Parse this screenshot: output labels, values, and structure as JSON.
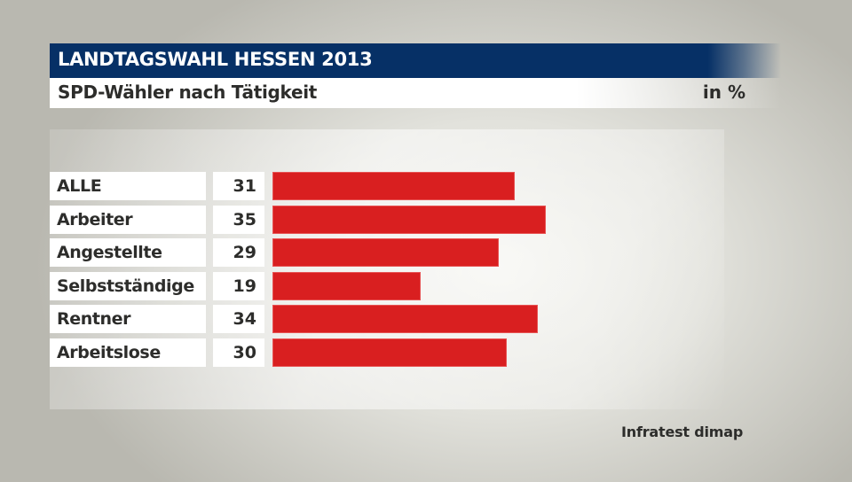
{
  "header": {
    "title": "LANDTAGSWAHL HESSEN 2013",
    "subtitle": "SPD-Wähler nach Tätigkeit",
    "unit": "in %"
  },
  "colors": {
    "header_bg": "#063066",
    "bar": "#d91f20",
    "text": "#2d2d2b"
  },
  "rows": [
    {
      "label": "ALLE",
      "value": "31"
    },
    {
      "label": "Arbeiter",
      "value": "35"
    },
    {
      "label": "Angestellte",
      "value": "29"
    },
    {
      "label": "Selbstständige",
      "value": "19"
    },
    {
      "label": "Rentner",
      "value": "34"
    },
    {
      "label": "Arbeitslose",
      "value": "30"
    }
  ],
  "source": "Infratest dimap",
  "chart_data": {
    "type": "bar",
    "orientation": "horizontal",
    "title": "LANDTAGSWAHL HESSEN 2013",
    "subtitle": "SPD-Wähler nach Tätigkeit",
    "unit": "in %",
    "categories": [
      "ALLE",
      "Arbeiter",
      "Angestellte",
      "Selbstständige",
      "Rentner",
      "Arbeitslose"
    ],
    "values": [
      31,
      35,
      29,
      19,
      34,
      30
    ],
    "series": [
      {
        "name": "SPD-Wähler",
        "values": [
          31,
          35,
          29,
          19,
          34,
          30
        ],
        "color": "#d91f20"
      }
    ],
    "xlabel": "",
    "ylabel": "",
    "grid": false,
    "legend": "none",
    "value_labels": true,
    "source": "Infratest dimap"
  }
}
